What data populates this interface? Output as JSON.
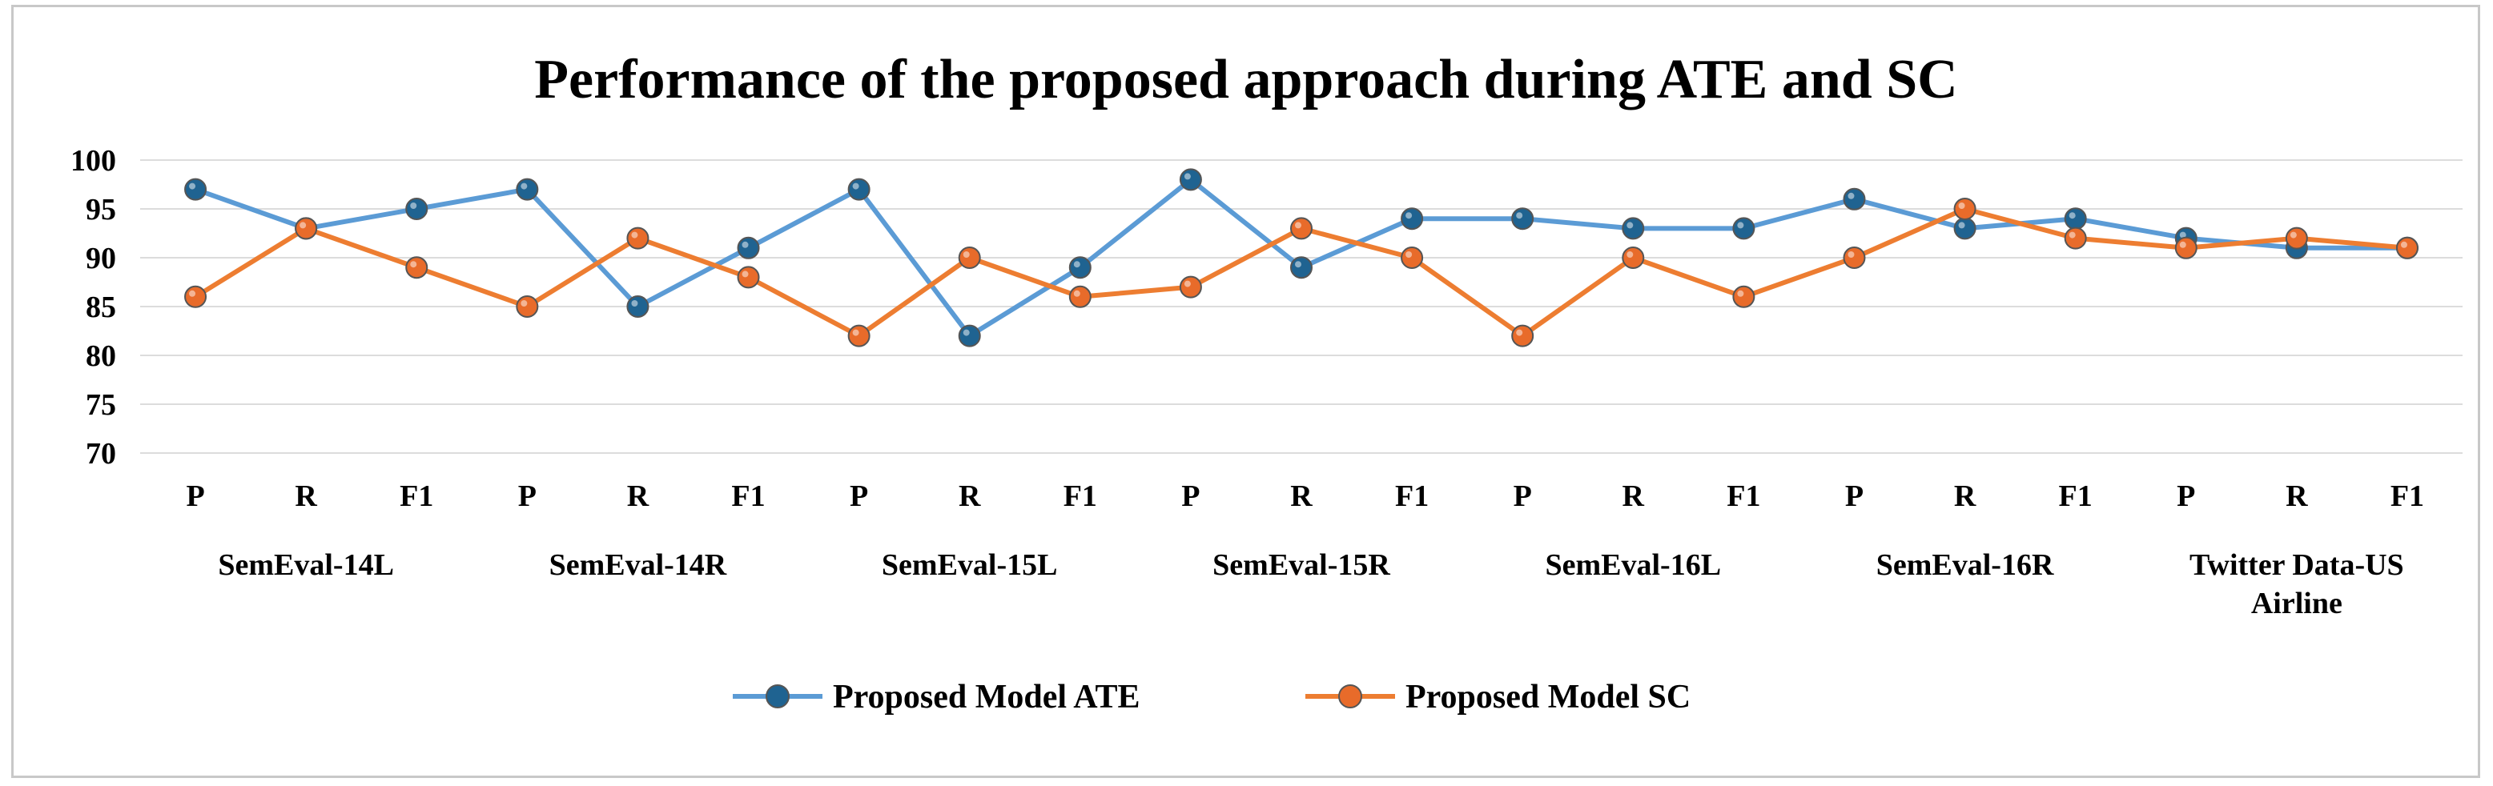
{
  "chart_data": {
    "type": "line",
    "title": "Performance of the proposed approach during ATE and SC",
    "xlabel": "",
    "ylabel": "",
    "ylim": [
      70,
      100
    ],
    "yticks": [
      70,
      75,
      80,
      85,
      90,
      95,
      100
    ],
    "grid": true,
    "legend_position": "bottom",
    "categories": [
      "P",
      "R",
      "F1",
      "P",
      "R",
      "F1",
      "P",
      "R",
      "F1",
      "P",
      "R",
      "F1",
      "P",
      "R",
      "F1",
      "P",
      "R",
      "F1",
      "P",
      "R",
      "F1"
    ],
    "groups": [
      {
        "label": [
          "SemEval-14L"
        ]
      },
      {
        "label": [
          "SemEval-14R"
        ]
      },
      {
        "label": [
          "SemEval-15L"
        ]
      },
      {
        "label": [
          "SemEval-15R"
        ]
      },
      {
        "label": [
          "SemEval-16L"
        ]
      },
      {
        "label": [
          "SemEval-16R"
        ]
      },
      {
        "label": [
          "Twitter Data-US",
          "Airline"
        ]
      }
    ],
    "series": [
      {
        "name": "Proposed Model ATE",
        "color": "#5b9bd5",
        "marker_color": "#1f6391",
        "values": [
          97,
          93,
          95,
          97,
          85,
          91,
          97,
          82,
          89,
          98,
          89,
          94,
          94,
          93,
          93,
          96,
          93,
          94,
          92,
          91,
          91
        ]
      },
      {
        "name": "Proposed Model SC",
        "color": "#ed7d31",
        "marker_color": "#e86b2a",
        "values": [
          86,
          93,
          89,
          85,
          92,
          88,
          82,
          90,
          86,
          87,
          93,
          90,
          82,
          90,
          86,
          90,
          95,
          92,
          91,
          92,
          91
        ]
      }
    ]
  }
}
